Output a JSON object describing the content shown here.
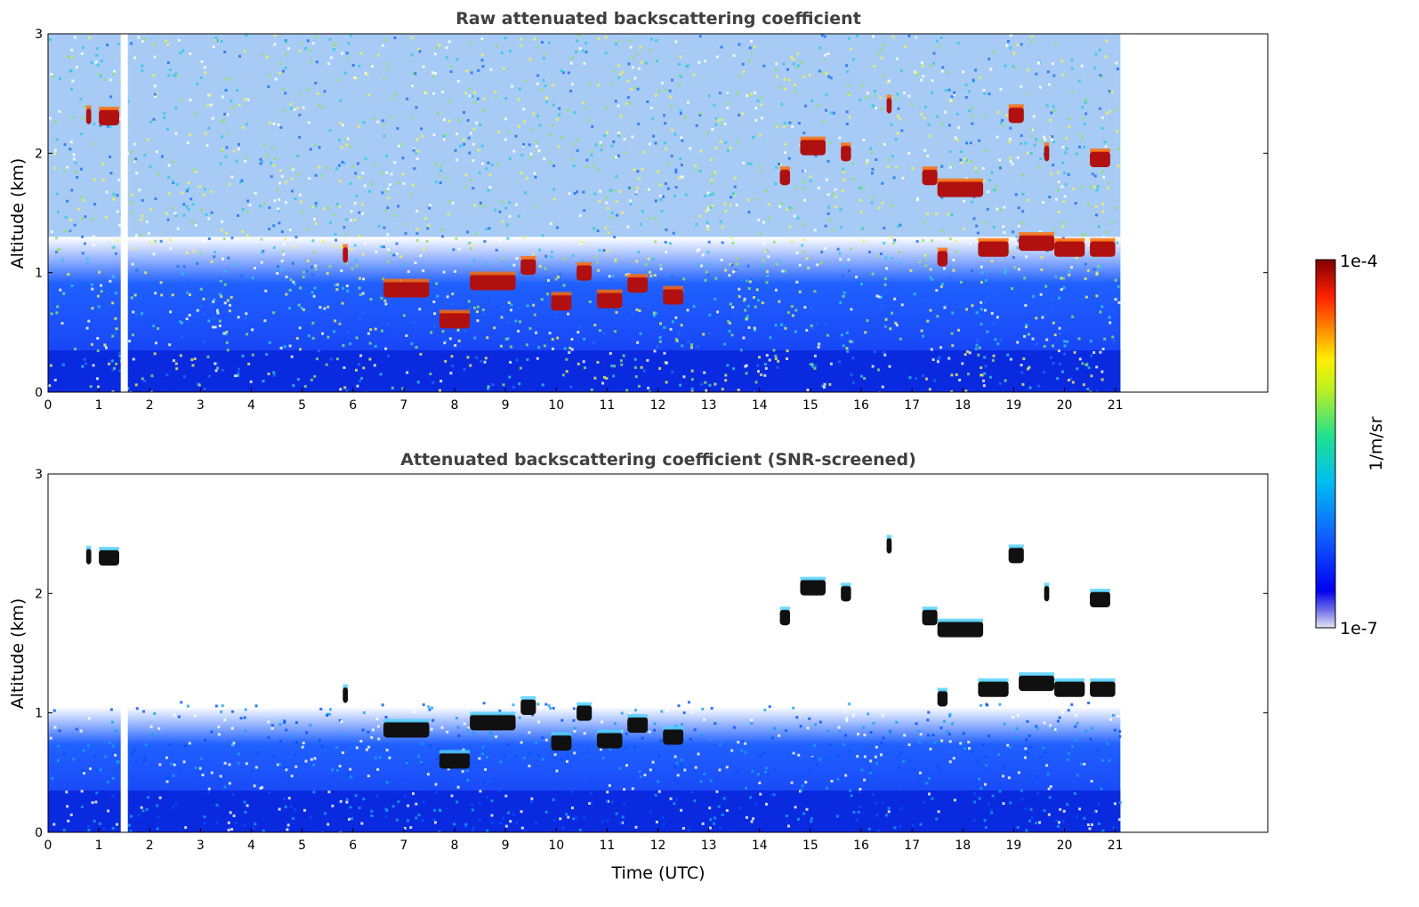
{
  "chart_data": [
    {
      "type": "heatmap",
      "title": "Raw attenuated backscattering coefficient",
      "xlabel": "",
      "ylabel": "Altitude (km)",
      "xlim": [
        0,
        24
      ],
      "ylim": [
        0,
        3
      ],
      "x_ticks": [
        "0",
        "1",
        "2",
        "3",
        "4",
        "5",
        "6",
        "7",
        "8",
        "9",
        "10",
        "11",
        "12",
        "13",
        "14",
        "15",
        "16",
        "17",
        "18",
        "19",
        "20",
        "21"
      ],
      "y_ticks": [
        "0",
        "1",
        "2",
        "3"
      ],
      "data_end_time": 21.1,
      "gap_time": 1.5,
      "cloud_layers": [
        {
          "t0": 0.75,
          "t1": 0.85,
          "alt": 2.31
        },
        {
          "t0": 1.0,
          "t1": 1.4,
          "alt": 2.3
        },
        {
          "t0": 5.8,
          "t1": 5.9,
          "alt": 1.15
        },
        {
          "t0": 6.6,
          "t1": 7.5,
          "alt": 0.86
        },
        {
          "t0": 7.7,
          "t1": 8.3,
          "alt": 0.6
        },
        {
          "t0": 8.3,
          "t1": 9.2,
          "alt": 0.92
        },
        {
          "t0": 9.3,
          "t1": 9.6,
          "alt": 1.05
        },
        {
          "t0": 9.9,
          "t1": 10.3,
          "alt": 0.75
        },
        {
          "t0": 10.4,
          "t1": 10.7,
          "alt": 1.0
        },
        {
          "t0": 10.8,
          "t1": 11.3,
          "alt": 0.77
        },
        {
          "t0": 11.4,
          "t1": 11.8,
          "alt": 0.9
        },
        {
          "t0": 12.1,
          "t1": 12.5,
          "alt": 0.8
        },
        {
          "t0": 14.4,
          "t1": 14.6,
          "alt": 1.8
        },
        {
          "t0": 14.8,
          "t1": 15.3,
          "alt": 2.05
        },
        {
          "t0": 15.6,
          "t1": 15.8,
          "alt": 2.0
        },
        {
          "t0": 16.5,
          "t1": 16.6,
          "alt": 2.4
        },
        {
          "t0": 17.2,
          "t1": 17.5,
          "alt": 1.8
        },
        {
          "t0": 17.5,
          "t1": 18.4,
          "alt": 1.7
        },
        {
          "t0": 17.5,
          "t1": 17.7,
          "alt": 1.12
        },
        {
          "t0": 18.3,
          "t1": 18.9,
          "alt": 1.2
        },
        {
          "t0": 18.9,
          "t1": 19.2,
          "alt": 2.32
        },
        {
          "t0": 19.1,
          "t1": 19.8,
          "alt": 1.25
        },
        {
          "t0": 19.6,
          "t1": 19.7,
          "alt": 2.0
        },
        {
          "t0": 19.8,
          "t1": 20.4,
          "alt": 1.2
        },
        {
          "t0": 20.5,
          "t1": 21.0,
          "alt": 1.2
        },
        {
          "t0": 20.5,
          "t1": 20.9,
          "alt": 1.95
        }
      ]
    },
    {
      "type": "heatmap",
      "title": "Attenuated backscattering coefficient (SNR-screened)",
      "xlabel": "Time (UTC)",
      "ylabel": "Altitude (km)",
      "xlim": [
        0,
        24
      ],
      "ylim": [
        0,
        3
      ],
      "x_ticks": [
        "0",
        "1",
        "2",
        "3",
        "4",
        "5",
        "6",
        "7",
        "8",
        "9",
        "10",
        "11",
        "12",
        "13",
        "14",
        "15",
        "16",
        "17",
        "18",
        "19",
        "20",
        "21"
      ],
      "y_ticks": [
        "0",
        "1",
        "2",
        "3"
      ],
      "data_end_time": 21.1,
      "gap_time": 1.5
    }
  ],
  "colorbar": {
    "label": "1/m/sr",
    "max_label": "1e-4",
    "min_label": "1e-7"
  }
}
